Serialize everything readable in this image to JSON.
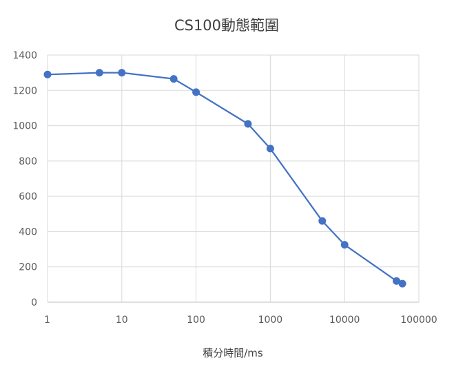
{
  "chart_data": {
    "type": "scatter",
    "title": "CS100動態範圍",
    "xlabel": "積分時間/ms",
    "ylabel": "",
    "x_scale": "log",
    "xlim": [
      1,
      100000
    ],
    "ylim": [
      0,
      1400
    ],
    "x_ticks": [
      "1",
      "10",
      "100",
      "1000",
      "10000",
      "100000"
    ],
    "y_ticks": [
      "0",
      "200",
      "400",
      "600",
      "800",
      "1000",
      "1200",
      "1400"
    ],
    "grid": true,
    "legend": "none",
    "series": [
      {
        "color": "#4472c4",
        "points": [
          {
            "x": 1,
            "y": 1290
          },
          {
            "x": 5,
            "y": 1300
          },
          {
            "x": 10,
            "y": 1300
          },
          {
            "x": 50,
            "y": 1265
          },
          {
            "x": 100,
            "y": 1190
          },
          {
            "x": 500,
            "y": 1010
          },
          {
            "x": 1000,
            "y": 870
          },
          {
            "x": 5000,
            "y": 460
          },
          {
            "x": 10000,
            "y": 325
          },
          {
            "x": 50000,
            "y": 120
          },
          {
            "x": 60000,
            "y": 105
          }
        ]
      }
    ]
  }
}
